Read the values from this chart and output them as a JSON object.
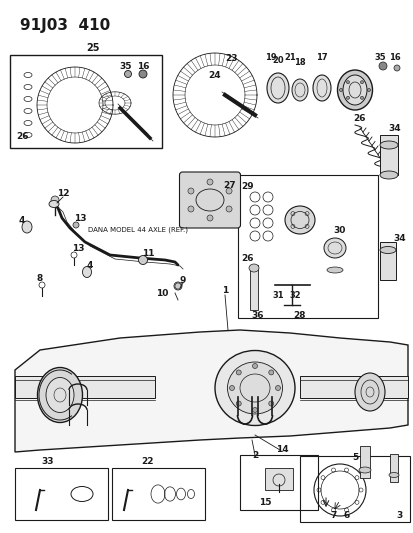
{
  "title": "91J03  410",
  "background_color": "#ffffff",
  "line_color": "#1a1a1a",
  "fig_width": 4.14,
  "fig_height": 5.33,
  "dpi": 100,
  "dana_label": "DANA MODEL 44 AXLE (REF.)"
}
